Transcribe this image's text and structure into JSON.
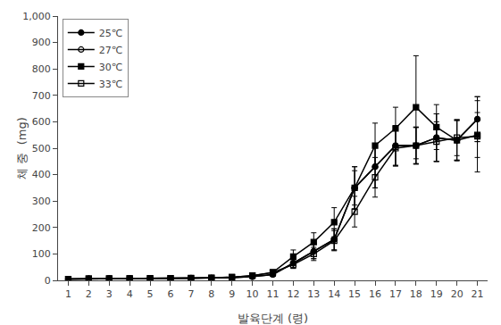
{
  "chart_data": {
    "type": "line",
    "xlabel": "발육단계 (령)",
    "ylabel": "체 중  (mg)",
    "x": [
      1,
      2,
      3,
      4,
      5,
      6,
      7,
      8,
      9,
      10,
      11,
      12,
      13,
      14,
      15,
      16,
      17,
      18,
      19,
      20,
      21
    ],
    "xlim": [
      0.5,
      21.5
    ],
    "xticks": [
      1,
      2,
      3,
      4,
      5,
      6,
      7,
      8,
      9,
      10,
      11,
      12,
      13,
      14,
      15,
      16,
      17,
      18,
      19,
      20,
      21
    ],
    "ylim": [
      0,
      1000
    ],
    "yticks": [
      0,
      100,
      200,
      300,
      400,
      500,
      600,
      700,
      800,
      900,
      {
        "value": 1000,
        "label": "1,000"
      }
    ],
    "grid": false,
    "legend": "upper left",
    "series": [
      {
        "name": "25℃",
        "color": "#000000",
        "marker": "circle",
        "line_style": "solid",
        "values": [
          5,
          6,
          7,
          7,
          8,
          8,
          9,
          9,
          10,
          14,
          22,
          65,
          110,
          155,
          350,
          430,
          510,
          510,
          540,
          530,
          610
        ],
        "yerr": [
          2,
          2,
          2,
          2,
          2,
          2,
          2,
          2,
          3,
          4,
          7,
          18,
          28,
          40,
          80,
          80,
          75,
          70,
          90,
          75,
          85
        ]
      },
      {
        "name": "27℃",
        "color": "#000000",
        "marker": "circle-open",
        "line_style": "solid",
        "values": [
          5,
          6,
          6,
          7,
          7,
          8,
          8,
          9,
          10,
          14,
          22,
          65,
          110,
          155,
          350,
          430,
          510,
          510,
          540,
          530,
          610
        ],
        "yerr": [
          2,
          2,
          2,
          2,
          2,
          2,
          2,
          2,
          3,
          4,
          7,
          18,
          28,
          40,
          80,
          80,
          75,
          70,
          90,
          75,
          85
        ]
      },
      {
        "name": "30℃",
        "color": "#000000",
        "marker": "square",
        "line_style": "solid",
        "values": [
          5,
          6,
          7,
          7,
          8,
          8,
          9,
          9,
          12,
          18,
          30,
          90,
          145,
          220,
          350,
          510,
          575,
          655,
          580,
          530,
          550
        ],
        "yerr": [
          2,
          2,
          2,
          2,
          2,
          2,
          2,
          2,
          3,
          5,
          10,
          25,
          35,
          55,
          65,
          85,
          80,
          195,
          85,
          78,
          85
        ]
      },
      {
        "name": "33℃",
        "color": "#000000",
        "marker": "square-open",
        "line_style": "solid",
        "values": [
          5,
          6,
          6,
          7,
          7,
          8,
          8,
          10,
          12,
          18,
          30,
          60,
          100,
          150,
          260,
          390,
          500,
          510,
          525,
          540,
          545
        ],
        "yerr": [
          2,
          2,
          2,
          2,
          2,
          2,
          2,
          2,
          3,
          4,
          7,
          15,
          25,
          38,
          58,
          75,
          68,
          68,
          75,
          68,
          135
        ]
      }
    ]
  }
}
